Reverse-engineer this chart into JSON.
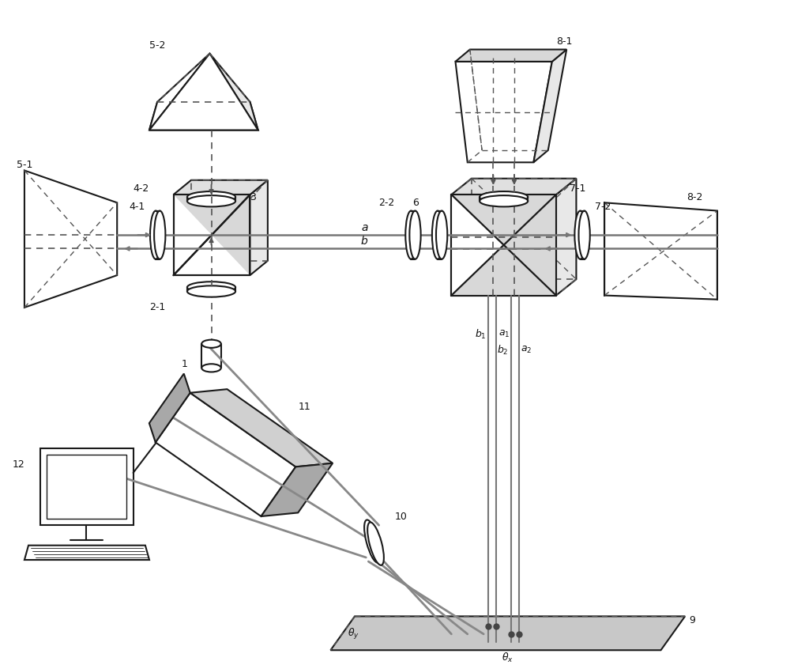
{
  "bg_color": "#ffffff",
  "lc": "#1a1a1a",
  "dc": "#555555",
  "gc": "#d0d0d0",
  "lgc": "#e8e8e8",
  "bc": "#777777",
  "figw": 10.0,
  "figh": 8.41
}
